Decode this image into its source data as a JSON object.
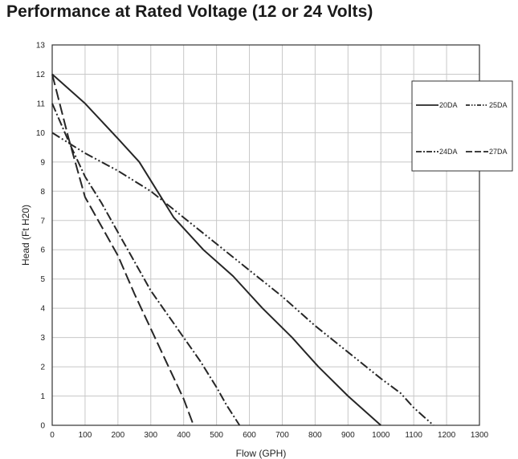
{
  "chart_data": {
    "type": "line",
    "title": "Performance at Rated Voltage (12 or 24 Volts)",
    "xlabel": "Flow (GPH)",
    "ylabel": "Head (Ft H20)",
    "xlim": [
      0,
      1300
    ],
    "ylim": [
      0,
      13
    ],
    "xticks": [
      0,
      100,
      200,
      300,
      400,
      500,
      600,
      700,
      800,
      900,
      1000,
      1100,
      1200,
      1300
    ],
    "yticks": [
      0,
      1,
      2,
      3,
      4,
      5,
      6,
      7,
      8,
      9,
      10,
      11,
      12,
      13
    ],
    "grid": true,
    "legend_position": "right",
    "series": [
      {
        "name": "20DA",
        "style": "solid",
        "x": [
          0,
          100,
          200,
          265,
          320,
          370,
          460,
          550,
          640,
          730,
          810,
          900,
          1000
        ],
        "y": [
          12,
          11,
          9.8,
          9,
          8,
          7.1,
          6,
          5.1,
          4,
          3,
          2,
          1,
          0
        ]
      },
      {
        "name": "25DA",
        "style": "dash-dot-dot",
        "x": [
          0,
          100,
          200,
          300,
          400,
          500,
          600,
          700,
          800,
          900,
          1000,
          1060,
          1100,
          1160
        ],
        "y": [
          10,
          9.3,
          8.7,
          8,
          7.1,
          6.2,
          5.3,
          4.4,
          3.4,
          2.5,
          1.6,
          1.1,
          0.6,
          0
        ]
      },
      {
        "name": "24DA",
        "style": "dash-dot",
        "x": [
          0,
          50,
          100,
          150,
          200,
          250,
          300,
          350,
          400,
          450,
          500,
          530,
          570
        ],
        "y": [
          11,
          9.7,
          8.5,
          7.6,
          6.6,
          5.6,
          4.6,
          3.8,
          3,
          2.2,
          1.3,
          0.7,
          0
        ]
      },
      {
        "name": "27DA",
        "style": "long-dash",
        "x": [
          0,
          50,
          100,
          150,
          200,
          250,
          300,
          350,
          400,
          430
        ],
        "y": [
          12,
          9.8,
          7.8,
          6.8,
          5.8,
          4.5,
          3.3,
          2.1,
          0.9,
          0
        ]
      }
    ]
  }
}
